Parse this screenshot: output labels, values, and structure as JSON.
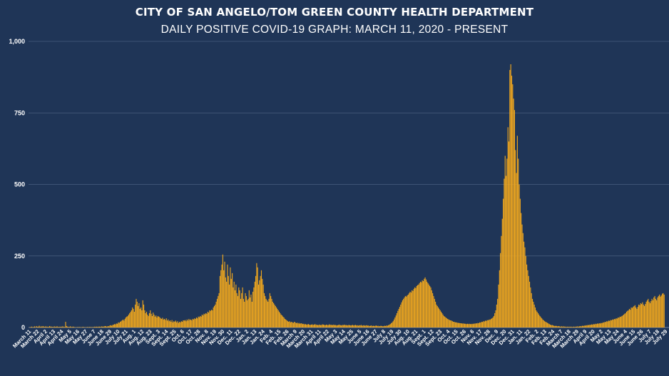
{
  "header": {
    "title": "CITY OF SAN ANGELO/TOM GREEN COUNTY HEALTH DEPARTMENT",
    "subtitle": "DAILY POSITIVE COVID-19 GRAPH: MARCH 11, 2020 - PRESENT"
  },
  "colors": {
    "background": "#1f3557",
    "bar": "#f2a81d",
    "grid": "#4a5f80",
    "text": "#ffffff"
  },
  "chart_data": {
    "type": "bar",
    "title": "CITY OF SAN ANGELO/TOM GREEN COUNTY HEALTH DEPARTMENT",
    "subtitle": "DAILY POSITIVE COVID-19 GRAPH: MARCH 11, 2020 - PRESENT",
    "xlabel": "",
    "ylabel": "",
    "ylim": [
      0,
      1000
    ],
    "yticks": [
      "0",
      "250",
      "500",
      "750",
      "1,000"
    ],
    "grid": true,
    "legend": "none",
    "x_tick_labels": [
      "March 11",
      "March 22",
      "April 2",
      "April 13",
      "April 24",
      "May 5",
      "May 16",
      "May 27",
      "June 7",
      "June 18",
      "June 29",
      "July 10",
      "July 21",
      "Aug. 1",
      "Aug. 12",
      "Aug. 23",
      "Sept. 3",
      "Sept. 14",
      "Sept. 25",
      "Oct. 6",
      "Oct. 17",
      "Oct. 28",
      "Nov. 8",
      "Nov. 19",
      "Nov. 30",
      "Dec. 11",
      "Dec. 22",
      "Jan. 2",
      "Jan. 13",
      "Jan. 24",
      "Feb. 4",
      "Feb. 15",
      "Feb. 26",
      "March 9",
      "March 20",
      "March 31",
      "April 11",
      "April 22",
      "May 3",
      "May 14",
      "May 25",
      "June 5",
      "June 16",
      "June 27",
      "July 8",
      "July 19",
      "July 30",
      "Aug. 10",
      "Aug. 21",
      "Sept. 1",
      "Sept. 12",
      "Sept. 23",
      "Oct. 4",
      "Oct. 15",
      "Oct. 26",
      "Nov. 6",
      "Nov. 17",
      "Nov. 28",
      "Dec. 9",
      "Dec. 20",
      "Dec. 31",
      "Jan. 11",
      "Jan. 22",
      "Feb. 2",
      "Feb. 13",
      "Feb. 24",
      "March 7",
      "March 18",
      "March 29",
      "April 9",
      "April 20",
      "May 2",
      "May 13",
      "May 24",
      "June 4",
      "June 15",
      "June 26",
      "July 7",
      "July 18",
      "July 29"
    ],
    "tick_interval_days": 11,
    "series": [
      {
        "values": [
          0,
          1,
          2,
          3,
          1,
          2,
          4,
          1,
          5,
          2,
          3,
          6,
          2,
          4,
          3,
          5,
          2,
          3,
          4,
          2,
          3,
          2,
          5,
          3,
          3,
          2,
          2,
          4,
          2,
          3,
          4,
          2,
          2,
          3,
          2,
          3,
          4,
          2,
          2,
          20,
          5,
          3,
          2,
          2,
          4,
          2,
          2,
          3,
          2,
          1,
          1,
          1,
          2,
          1,
          2,
          1,
          1,
          2,
          2,
          1,
          1,
          1,
          2,
          1,
          2,
          2,
          1,
          2,
          1,
          2,
          3,
          2,
          3,
          2,
          3,
          3,
          2,
          4,
          3,
          3,
          4,
          5,
          4,
          3,
          5,
          4,
          7,
          8,
          6,
          9,
          10,
          12,
          11,
          14,
          13,
          18,
          16,
          20,
          22,
          25,
          28,
          24,
          30,
          35,
          38,
          40,
          45,
          50,
          55,
          60,
          70,
          65,
          55,
          80,
          100,
          90,
          75,
          85,
          65,
          70,
          60,
          95,
          80,
          60,
          50,
          55,
          45,
          40,
          50,
          60,
          48,
          40,
          52,
          45,
          38,
          42,
          35,
          40,
          38,
          36,
          32,
          30,
          34,
          28,
          30,
          26,
          32,
          24,
          28,
          22,
          25,
          20,
          26,
          18,
          22,
          20,
          24,
          18,
          22,
          16,
          20,
          18,
          22,
          20,
          25,
          24,
          26,
          22,
          28,
          24,
          30,
          26,
          28,
          25,
          30,
          28,
          32,
          30,
          35,
          32,
          38,
          36,
          40,
          38,
          45,
          42,
          48,
          46,
          50,
          48,
          55,
          52,
          60,
          58,
          62,
          60,
          70,
          75,
          80,
          90,
          100,
          110,
          120,
          180,
          200,
          220,
          255,
          200,
          230,
          175,
          160,
          220,
          180,
          150,
          210,
          170,
          190,
          140,
          160,
          130,
          150,
          120,
          110,
          140,
          130,
          100,
          120,
          140,
          100,
          90,
          120,
          110,
          95,
          100,
          130,
          105,
          115,
          90,
          125,
          140,
          160,
          180,
          225,
          210,
          150,
          165,
          180,
          200,
          170,
          150,
          120,
          110,
          100,
          95,
          90,
          100,
          120,
          110,
          100,
          90,
          85,
          80,
          75,
          70,
          65,
          60,
          55,
          50,
          45,
          42,
          38,
          35,
          30,
          28,
          25,
          22,
          20,
          22,
          18,
          20,
          18,
          16,
          20,
          18,
          15,
          17,
          14,
          16,
          13,
          15,
          14,
          12,
          13,
          11,
          12,
          10,
          11,
          12,
          10,
          9,
          10,
          11,
          9,
          10,
          12,
          9,
          10,
          8,
          9,
          10,
          8,
          9,
          11,
          10,
          9,
          8,
          10,
          9,
          8,
          11,
          9,
          10,
          8,
          9,
          10,
          8,
          9,
          7,
          8,
          9,
          10,
          8,
          7,
          9,
          8,
          10,
          8,
          9,
          7,
          8,
          9,
          8,
          7,
          8,
          9,
          7,
          8,
          9,
          7,
          8,
          6,
          8,
          7,
          9,
          6,
          7,
          8,
          6,
          7,
          8,
          6,
          7,
          5,
          6,
          7,
          5,
          6,
          5,
          6,
          7,
          5,
          6,
          4,
          5,
          6,
          5,
          4,
          5,
          6,
          5,
          7,
          6,
          8,
          10,
          12,
          15,
          18,
          22,
          28,
          35,
          42,
          50,
          58,
          65,
          72,
          80,
          88,
          95,
          100,
          105,
          110,
          108,
          112,
          115,
          120,
          125,
          122,
          130,
          128,
          135,
          140,
          138,
          145,
          148,
          150,
          155,
          160,
          158,
          165,
          162,
          170,
          175,
          168,
          160,
          155,
          150,
          145,
          140,
          130,
          120,
          110,
          100,
          90,
          80,
          75,
          70,
          65,
          60,
          55,
          50,
          45,
          40,
          38,
          35,
          32,
          30,
          28,
          26,
          25,
          24,
          22,
          20,
          20,
          18,
          18,
          17,
          16,
          16,
          15,
          15,
          14,
          14,
          14,
          13,
          13,
          12,
          13,
          12,
          13,
          12,
          12,
          13,
          12,
          14,
          13,
          15,
          14,
          16,
          15,
          18,
          17,
          20,
          19,
          22,
          21,
          24,
          23,
          26,
          25,
          28,
          27,
          30,
          32,
          35,
          40,
          50,
          60,
          80,
          100,
          150,
          200,
          260,
          320,
          380,
          450,
          520,
          600,
          530,
          590,
          700,
          650,
          900,
          920,
          880,
          850,
          800,
          760,
          620,
          540,
          670,
          590,
          500,
          450,
          400,
          360,
          330,
          300,
          280,
          250,
          220,
          200,
          180,
          160,
          140,
          120,
          100,
          90,
          80,
          70,
          60,
          55,
          50,
          45,
          40,
          36,
          32,
          28,
          25,
          22,
          20,
          18,
          16,
          14,
          12,
          10,
          8,
          9,
          7,
          6,
          5,
          6,
          5,
          4,
          5,
          4,
          3,
          4,
          3,
          4,
          3,
          3,
          2,
          3,
          2,
          3,
          2,
          3,
          2,
          2,
          3,
          2,
          3,
          3,
          4,
          3,
          4,
          5,
          4,
          6,
          5,
          7,
          6,
          8,
          7,
          9,
          8,
          10,
          9,
          11,
          10,
          12,
          11,
          13,
          12,
          14,
          13,
          15,
          14,
          16,
          15,
          18,
          17,
          20,
          19,
          22,
          21,
          24,
          23,
          26,
          25,
          28,
          27,
          30,
          29,
          32,
          31,
          35,
          34,
          38,
          37,
          40,
          42,
          45,
          48,
          50,
          55,
          58,
          60,
          65,
          62,
          70,
          68,
          72,
          75,
          78,
          70,
          65,
          72,
          80,
          78,
          85,
          82,
          88,
          80,
          75,
          82,
          90,
          95,
          100,
          90,
          85,
          92,
          100,
          95,
          105,
          110,
          100,
          95,
          105,
          110,
          115,
          108,
          112,
          118,
          120,
          115
        ]
      }
    ]
  }
}
